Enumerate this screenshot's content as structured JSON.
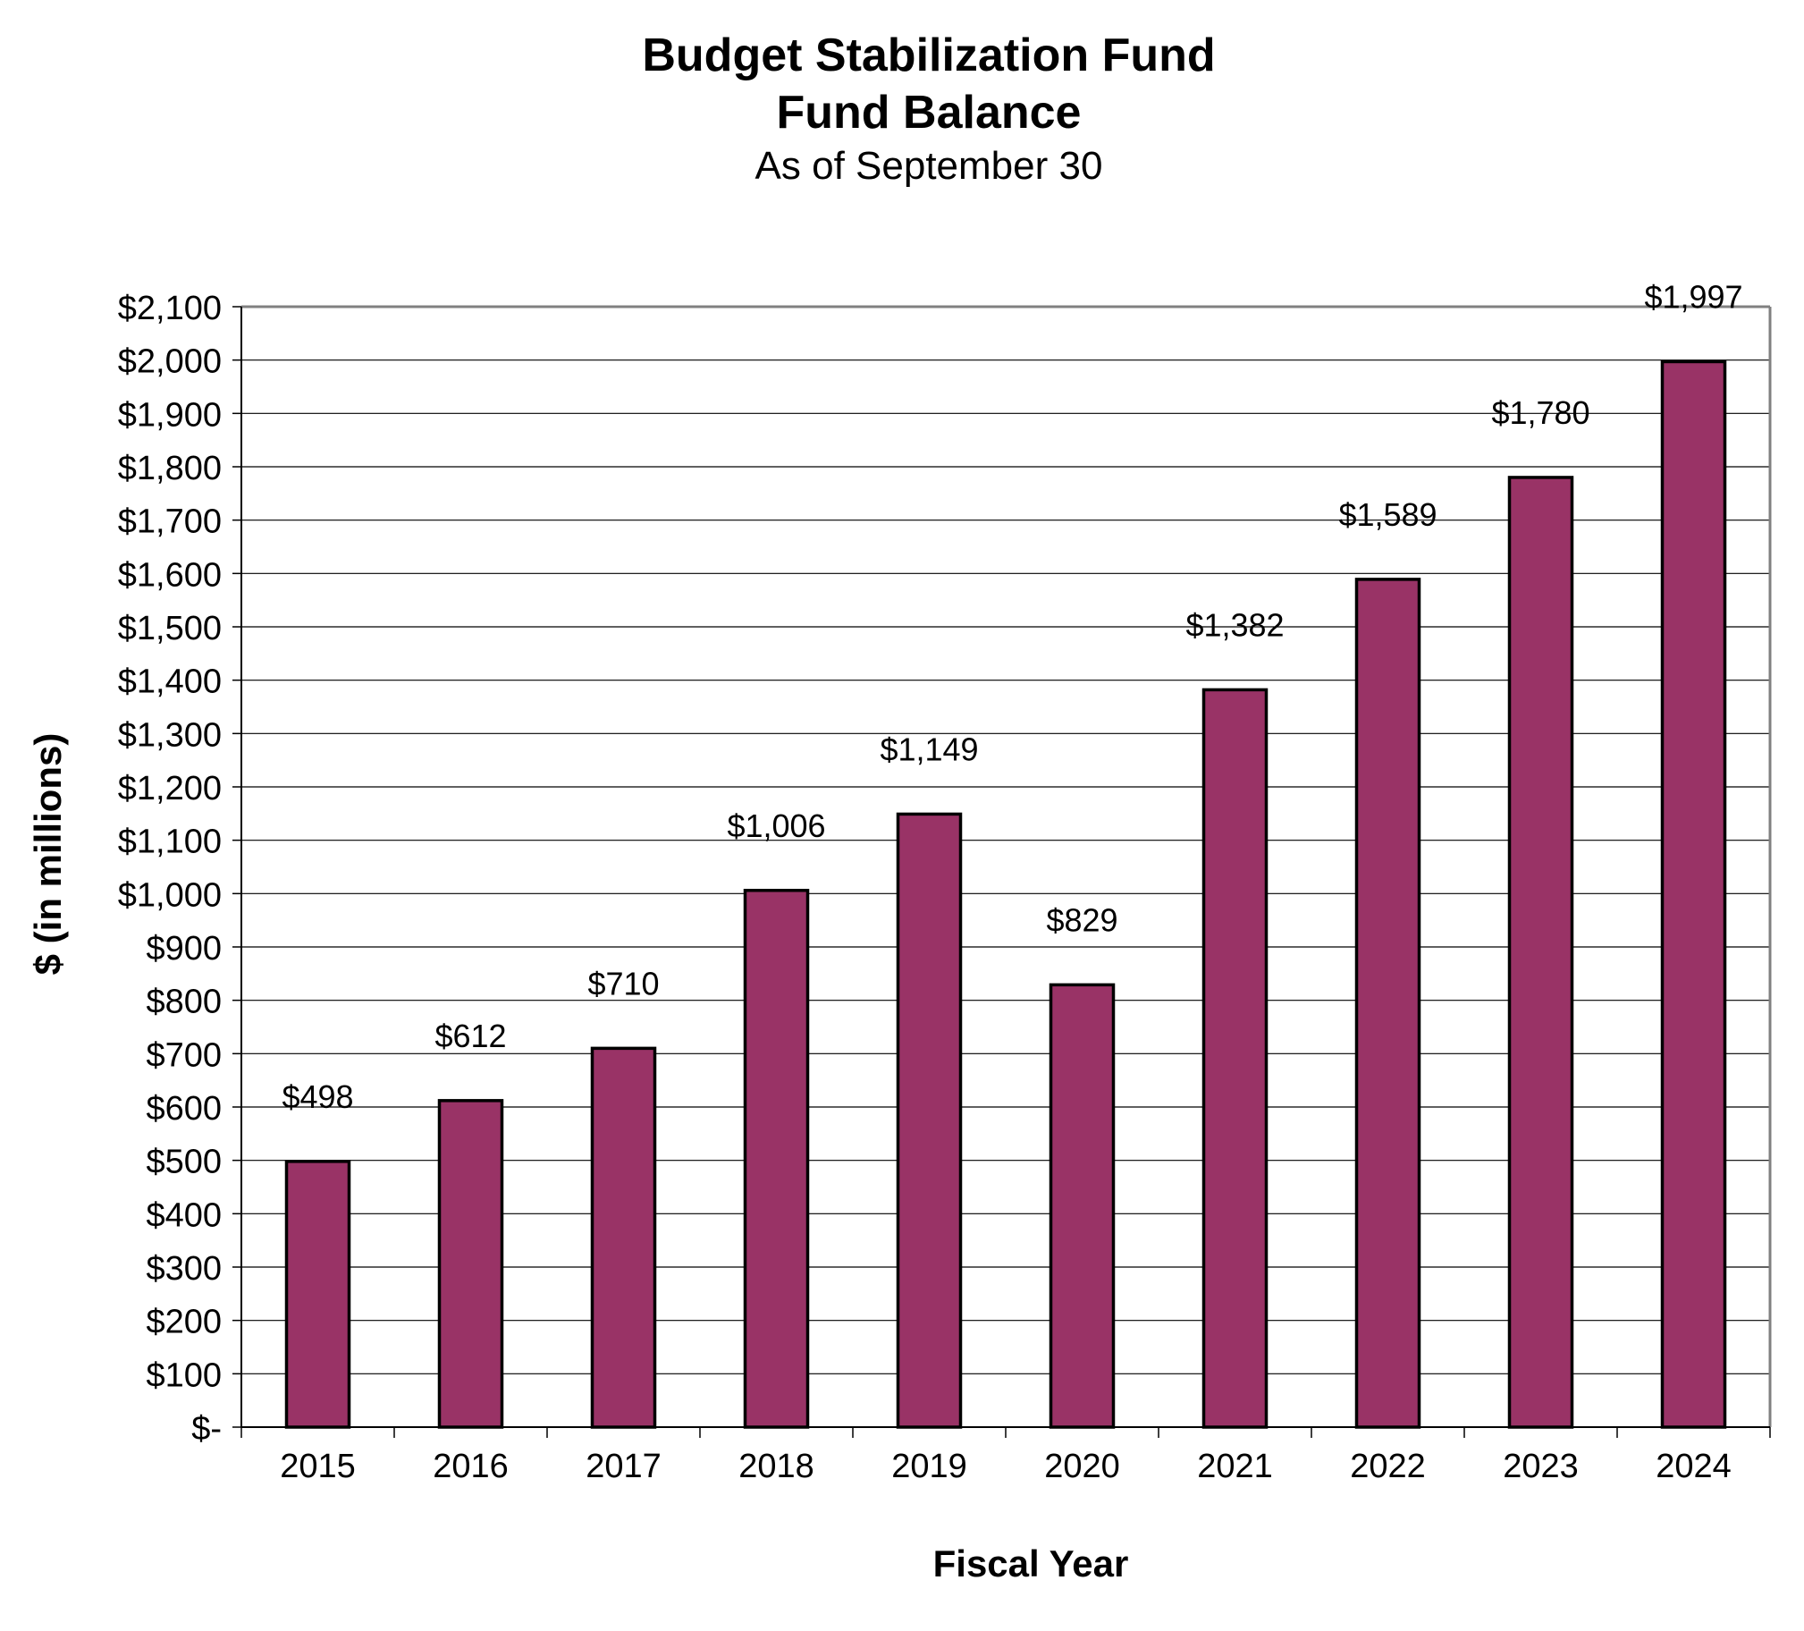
{
  "chart_data": {
    "type": "bar",
    "title": "Budget Stabilization Fund",
    "title_line2": "Fund Balance",
    "subtitle": "As of September 30",
    "xlabel": "Fiscal Year",
    "ylabel": "$ (in millions)",
    "categories": [
      "2015",
      "2016",
      "2017",
      "2018",
      "2019",
      "2020",
      "2021",
      "2022",
      "2023",
      "2024"
    ],
    "values": [
      498,
      612,
      710,
      1006,
      1149,
      829,
      1382,
      1589,
      1780,
      1997
    ],
    "data_labels": [
      "$498",
      "$612",
      "$710",
      "$1,006",
      "$1,149",
      "$829",
      "$1,382",
      "$1,589",
      "$1,780",
      "$1,997"
    ],
    "ylim": [
      0,
      2100
    ],
    "yticks": [
      0,
      100,
      200,
      300,
      400,
      500,
      600,
      700,
      800,
      900,
      1000,
      1100,
      1200,
      1300,
      1400,
      1500,
      1600,
      1700,
      1800,
      1900,
      2000,
      2100
    ],
    "ytick_labels": [
      "$-",
      "$100",
      "$200",
      "$300",
      "$400",
      "$500",
      "$600",
      "$700",
      "$800",
      "$900",
      "$1,000",
      "$1,100",
      "$1,200",
      "$1,300",
      "$1,400",
      "$1,500",
      "$1,600",
      "$1,700",
      "$1,800",
      "$1,900",
      "$2,000",
      "$2,100"
    ],
    "grid": true,
    "legend": "none",
    "colors": {
      "bar_fill": "#993366",
      "bar_stroke": "#000000",
      "gridline": "#000000",
      "plot_border": "#808080",
      "shadow": "#a0a0a0"
    }
  }
}
